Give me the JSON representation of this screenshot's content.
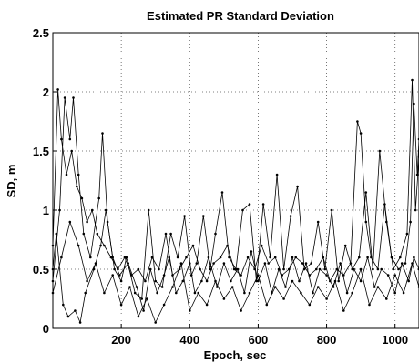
{
  "chart_data": {
    "type": "line",
    "title": "Estimated PR Standard Deviation",
    "xlabel": "Epoch, sec",
    "ylabel": "SD, m",
    "xlim": [
      0,
      1070
    ],
    "ylim": [
      0,
      2.5
    ],
    "x_ticks": [
      200,
      400,
      600,
      800,
      1000
    ],
    "x_tick_labels": [
      "200",
      "400",
      "600",
      "800",
      "1000"
    ],
    "y_ticks": [
      0,
      0.5,
      1,
      1.5,
      2,
      2.5
    ],
    "y_tick_labels": [
      "0",
      "0.5",
      "1",
      "1.5",
      "2",
      "2.5"
    ],
    "grid": true,
    "marker": "dot",
    "line_color": "#000000",
    "series": [
      {
        "x": [
          0,
          15,
          25,
          40,
          55,
          70,
          85,
          100,
          115,
          130,
          150,
          170,
          190,
          210,
          230,
          250,
          270,
          290,
          310,
          330,
          350,
          370,
          390,
          410,
          430,
          450,
          470,
          490,
          510,
          530,
          550,
          570,
          590,
          610,
          630,
          650,
          670,
          690,
          710,
          730,
          750,
          770,
          790,
          810,
          830,
          850,
          870,
          890,
          900,
          915,
          930,
          950,
          970,
          990,
          1010,
          1030,
          1045,
          1055,
          1065,
          1070
        ],
        "y": [
          0.7,
          2.02,
          1.6,
          1.3,
          1.5,
          1.2,
          1.1,
          0.9,
          1.0,
          0.8,
          0.7,
          0.6,
          0.5,
          0.6,
          0.45,
          0.5,
          0.4,
          0.6,
          0.5,
          0.8,
          0.45,
          0.5,
          0.6,
          0.7,
          0.5,
          0.4,
          0.55,
          0.6,
          0.7,
          0.5,
          0.45,
          0.6,
          0.5,
          0.7,
          0.55,
          0.6,
          0.45,
          0.5,
          0.6,
          0.55,
          0.45,
          0.5,
          0.6,
          0.4,
          0.5,
          0.45,
          0.55,
          1.75,
          1.65,
          0.9,
          0.6,
          0.5,
          1.05,
          0.6,
          0.5,
          0.55,
          0.9,
          1.9,
          1.3,
          1.6
        ]
      },
      {
        "x": [
          0,
          20,
          35,
          50,
          60,
          75,
          90,
          110,
          135,
          145,
          160,
          180,
          200,
          215,
          240,
          260,
          280,
          300,
          320,
          345,
          365,
          385,
          405,
          420,
          440,
          460,
          475,
          495,
          515,
          535,
          555,
          575,
          595,
          615,
          635,
          655,
          675,
          695,
          715,
          735,
          755,
          775,
          795,
          815,
          835,
          855,
          875,
          895,
          915,
          935,
          955,
          975,
          995,
          1015,
          1035,
          1050,
          1060,
          1070
        ],
        "y": [
          0.4,
          1.0,
          1.95,
          1.6,
          1.95,
          1.3,
          0.8,
          0.6,
          1.1,
          1.65,
          0.9,
          0.5,
          0.4,
          0.6,
          0.3,
          0.25,
          1.0,
          0.4,
          0.35,
          0.8,
          0.6,
          0.95,
          0.45,
          0.55,
          0.95,
          0.5,
          0.8,
          1.15,
          0.6,
          0.5,
          1.0,
          1.05,
          0.4,
          1.05,
          0.6,
          1.3,
          0.5,
          0.95,
          1.2,
          0.5,
          0.55,
          0.9,
          0.5,
          1.0,
          0.4,
          0.7,
          0.5,
          0.6,
          1.15,
          0.5,
          1.5,
          0.9,
          0.5,
          0.6,
          0.8,
          2.1,
          1.0,
          1.45
        ]
      },
      {
        "x": [
          0,
          10,
          30,
          45,
          65,
          80,
          95,
          120,
          140,
          155,
          175,
          195,
          220,
          245,
          265,
          285,
          305,
          325,
          340,
          360,
          380,
          400,
          415,
          435,
          455,
          480,
          500,
          520,
          540,
          560,
          580,
          600,
          620,
          640,
          660,
          680,
          700,
          720,
          740,
          760,
          780,
          800,
          820,
          840,
          860,
          880,
          900,
          920,
          940,
          960,
          980,
          1000,
          1020,
          1040,
          1055,
          1070
        ],
        "y": [
          0.5,
          0.8,
          0.2,
          0.1,
          0.15,
          0.05,
          0.3,
          0.5,
          0.7,
          1.0,
          0.6,
          0.45,
          0.55,
          0.35,
          0.15,
          0.5,
          0.3,
          0.45,
          0.6,
          0.3,
          0.4,
          0.55,
          0.3,
          0.4,
          0.6,
          0.35,
          0.55,
          0.4,
          0.5,
          0.3,
          0.65,
          0.4,
          0.55,
          0.3,
          0.5,
          0.35,
          0.6,
          0.4,
          0.55,
          0.3,
          0.5,
          0.45,
          0.35,
          0.55,
          0.3,
          0.5,
          0.4,
          0.6,
          0.35,
          0.5,
          0.45,
          0.3,
          0.55,
          0.4,
          0.6,
          0.5
        ]
      },
      {
        "x": [
          0,
          25,
          50,
          75,
          100,
          125,
          150,
          175,
          200,
          225,
          250,
          275,
          300,
          325,
          350,
          375,
          400,
          425,
          450,
          475,
          500,
          525,
          550,
          575,
          600,
          625,
          650,
          675,
          700,
          725,
          750,
          775,
          800,
          825,
          850,
          875,
          900,
          925,
          950,
          975,
          1000,
          1025,
          1050,
          1070
        ],
        "y": [
          0.3,
          0.6,
          0.9,
          0.7,
          0.4,
          0.55,
          0.3,
          0.45,
          0.2,
          0.35,
          0.1,
          0.25,
          0.05,
          0.2,
          0.35,
          0.55,
          0.15,
          0.3,
          0.2,
          0.4,
          0.25,
          0.35,
          0.15,
          0.3,
          0.45,
          0.2,
          0.35,
          0.25,
          0.4,
          0.3,
          0.2,
          0.35,
          0.25,
          0.4,
          0.15,
          0.3,
          0.5,
          0.2,
          0.35,
          0.25,
          0.45,
          0.3,
          0.55,
          0.35
        ]
      }
    ]
  }
}
